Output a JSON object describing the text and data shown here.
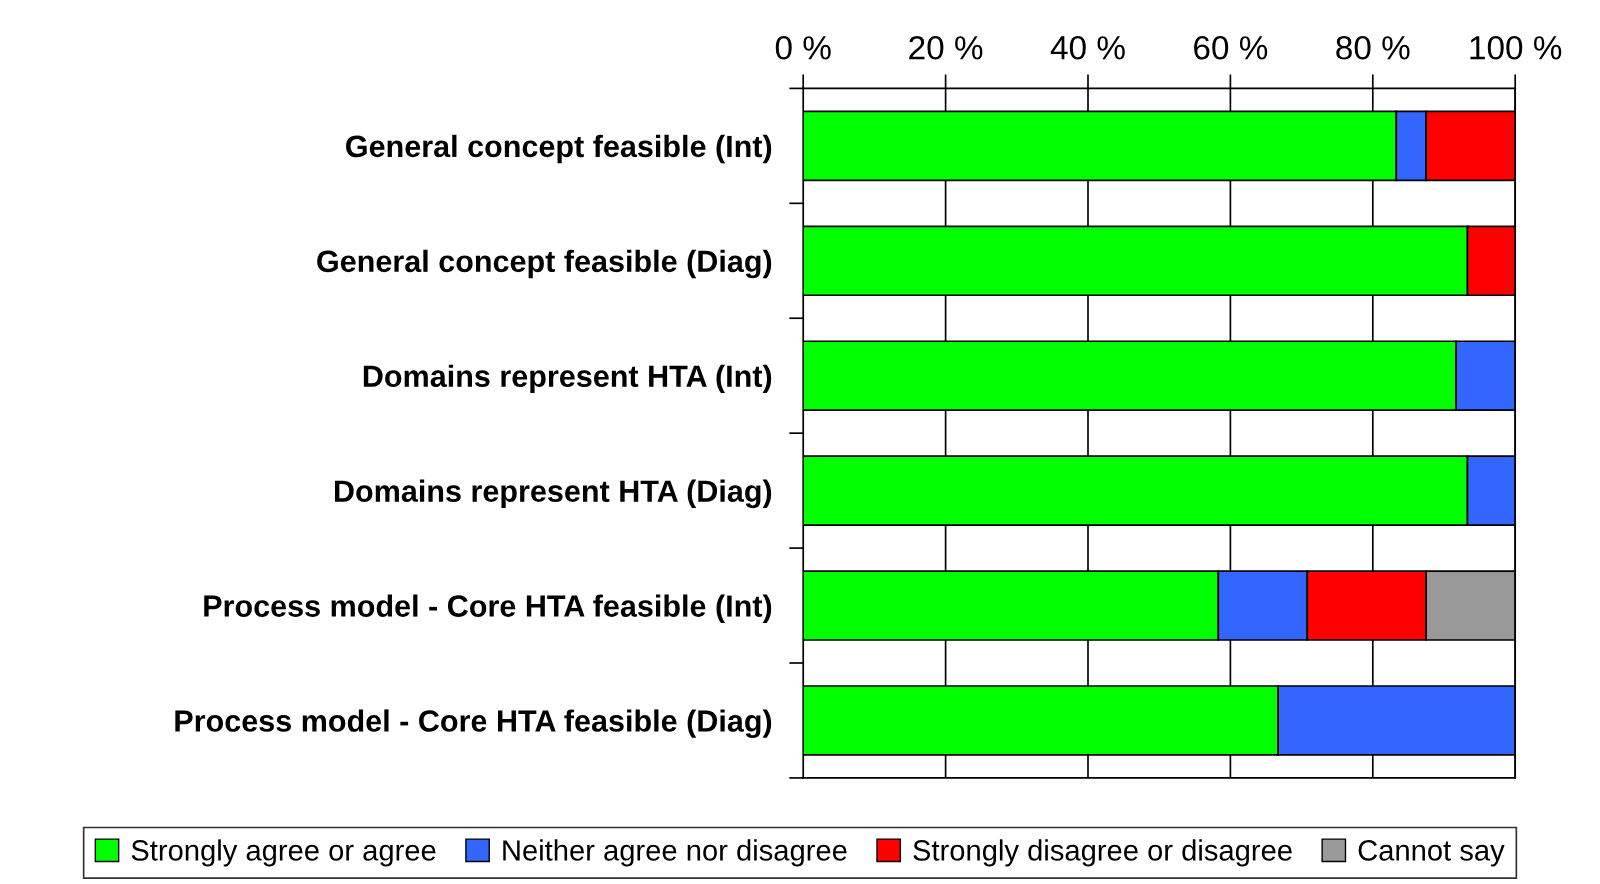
{
  "chart_data": {
    "type": "bar",
    "orientation": "horizontal",
    "stacked": true,
    "categories": [
      "General concept feasible (Int)",
      "General concept feasible (Diag)",
      "Domains represent HTA (Int)",
      "Domains represent HTA (Diag)",
      "Process model - Core HTA feasible (Int)",
      "Process model - Core HTA feasible (Diag)"
    ],
    "series": [
      {
        "name": "Strongly agree or agree",
        "color": "#00ff00",
        "values": [
          83.3,
          93.3,
          91.7,
          93.3,
          58.3,
          66.7
        ]
      },
      {
        "name": "Neither agree nor disagree",
        "color": "#3366ff",
        "values": [
          4.2,
          0,
          8.3,
          6.7,
          12.5,
          33.3
        ]
      },
      {
        "name": "Strongly disagree or disagree",
        "color": "#ff0000",
        "values": [
          12.5,
          6.7,
          0,
          0,
          16.7,
          0
        ]
      },
      {
        "name": "Cannot say",
        "color": "#999999",
        "values": [
          0,
          0,
          0,
          0,
          12.5,
          0
        ]
      }
    ],
    "xlim": [
      0,
      100
    ],
    "xticks": [
      {
        "value": 0,
        "label": "0 %"
      },
      {
        "value": 20,
        "label": "20 %"
      },
      {
        "value": 40,
        "label": "40 %"
      },
      {
        "value": 60,
        "label": "60 %"
      },
      {
        "value": 80,
        "label": "80 %"
      },
      {
        "value": 100,
        "label": "100 %"
      }
    ],
    "grid": "x",
    "legend": "bottom"
  }
}
